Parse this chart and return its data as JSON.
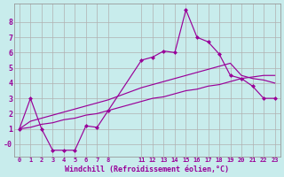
{
  "xlabel": "Windchill (Refroidissement éolien,°C)",
  "background_color": "#c8ecec",
  "grid_color": "#b0b0b0",
  "line_color": "#990099",
  "line1_x": [
    0,
    1,
    2,
    3,
    4,
    5,
    6,
    7,
    8,
    11,
    12,
    13,
    14,
    15,
    16,
    17,
    18,
    19,
    20,
    21,
    22,
    23
  ],
  "line1_y": [
    1.0,
    3.0,
    1.0,
    -0.4,
    -0.4,
    -0.4,
    1.2,
    1.1,
    2.2,
    5.5,
    5.7,
    6.1,
    6.0,
    8.8,
    7.0,
    6.7,
    5.9,
    4.5,
    4.3,
    3.8,
    3.0,
    3.0
  ],
  "line2_x": [
    0,
    1,
    2,
    3,
    4,
    5,
    6,
    7,
    8,
    11,
    12,
    13,
    14,
    15,
    16,
    17,
    18,
    19,
    20,
    21,
    22,
    23
  ],
  "line2_y": [
    1.0,
    1.5,
    1.7,
    1.9,
    2.1,
    2.3,
    2.5,
    2.7,
    2.9,
    3.7,
    3.9,
    4.1,
    4.3,
    4.5,
    4.7,
    4.9,
    5.1,
    5.3,
    4.5,
    4.3,
    4.2,
    4.0
  ],
  "line3_x": [
    0,
    1,
    2,
    3,
    4,
    5,
    6,
    7,
    8,
    11,
    12,
    13,
    14,
    15,
    16,
    17,
    18,
    19,
    20,
    21,
    22,
    23
  ],
  "line3_y": [
    1.0,
    1.1,
    1.3,
    1.4,
    1.6,
    1.7,
    1.9,
    2.0,
    2.2,
    2.8,
    3.0,
    3.1,
    3.3,
    3.5,
    3.6,
    3.8,
    3.9,
    4.1,
    4.3,
    4.4,
    4.5,
    4.5
  ],
  "ylim": [
    -0.8,
    9.2
  ],
  "xlim": [
    -0.5,
    23.5
  ],
  "yticks": [
    0,
    1,
    2,
    3,
    4,
    5,
    6,
    7,
    8
  ],
  "ytick_labels": [
    "-0",
    "1",
    "2",
    "3",
    "4",
    "5",
    "6",
    "7",
    "8"
  ],
  "xtick_positions": [
    0,
    1,
    2,
    3,
    4,
    5,
    6,
    7,
    8,
    11,
    12,
    13,
    14,
    15,
    16,
    17,
    18,
    19,
    20,
    21,
    22,
    23
  ],
  "xtick_labels": [
    "0",
    "1",
    "2",
    "3",
    "4",
    "5",
    "6",
    "7",
    "8",
    "11",
    "12",
    "13",
    "14",
    "15",
    "16",
    "17",
    "18",
    "19",
    "20",
    "21",
    "22",
    "23"
  ],
  "marker": "D",
  "markersize": 2.5,
  "linewidth": 0.85
}
